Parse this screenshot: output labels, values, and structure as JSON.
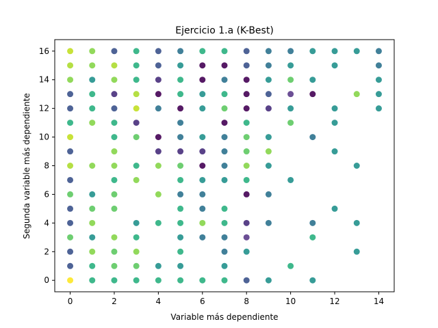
{
  "chart_data": {
    "type": "scatter",
    "title": "Ejercicio 1.a (K-Best)",
    "xlabel": "Variable más dependiente",
    "ylabel": "Segunda variable más dependiente",
    "xlim": [
      -0.7,
      14.7
    ],
    "ylim": [
      -0.8,
      16.8
    ],
    "xticks": [
      0,
      2,
      4,
      6,
      8,
      10,
      12,
      14
    ],
    "yticks": [
      0,
      2,
      4,
      6,
      8,
      10,
      12,
      14,
      16
    ],
    "grid": false,
    "colormap": [
      "#440154",
      "#3b528b",
      "#21918c",
      "#5ec962",
      "#fde725"
    ],
    "points": [
      {
        "x": 0,
        "y": 16,
        "c": "#c2df23"
      },
      {
        "x": 1,
        "y": 16,
        "c": "#86d549"
      },
      {
        "x": 2,
        "y": 16,
        "c": "#3b528b"
      },
      {
        "x": 3,
        "y": 16,
        "c": "#2ab07f"
      },
      {
        "x": 4,
        "y": 16,
        "c": "#3b528b"
      },
      {
        "x": 5,
        "y": 16,
        "c": "#2c728e"
      },
      {
        "x": 6,
        "y": 16,
        "c": "#2ab07f"
      },
      {
        "x": 7,
        "y": 16,
        "c": "#2ab07f"
      },
      {
        "x": 8,
        "y": 16,
        "c": "#3b528b"
      },
      {
        "x": 9,
        "y": 16,
        "c": "#2c728e"
      },
      {
        "x": 10,
        "y": 16,
        "c": "#2c728e"
      },
      {
        "x": 11,
        "y": 16,
        "c": "#21918c"
      },
      {
        "x": 12,
        "y": 16,
        "c": "#21918c"
      },
      {
        "x": 13,
        "y": 16,
        "c": "#21918c"
      },
      {
        "x": 14,
        "y": 16,
        "c": "#2c728e"
      },
      {
        "x": 0,
        "y": 15,
        "c": "#addc30"
      },
      {
        "x": 1,
        "y": 15,
        "c": "#86d549"
      },
      {
        "x": 2,
        "y": 15,
        "c": "#addc30"
      },
      {
        "x": 3,
        "y": 15,
        "c": "#2ab07f"
      },
      {
        "x": 4,
        "y": 15,
        "c": "#3b528b"
      },
      {
        "x": 5,
        "y": 15,
        "c": "#21918c"
      },
      {
        "x": 6,
        "y": 15,
        "c": "#440154"
      },
      {
        "x": 7,
        "y": 15,
        "c": "#440154"
      },
      {
        "x": 8,
        "y": 15,
        "c": "#3b528b"
      },
      {
        "x": 9,
        "y": 15,
        "c": "#2c728e"
      },
      {
        "x": 10,
        "y": 15,
        "c": "#21918c"
      },
      {
        "x": 12,
        "y": 15,
        "c": "#21918c"
      },
      {
        "x": 14,
        "y": 15,
        "c": "#2c728e"
      },
      {
        "x": 0,
        "y": 14,
        "c": "#86d549"
      },
      {
        "x": 1,
        "y": 14,
        "c": "#21918c"
      },
      {
        "x": 2,
        "y": 14,
        "c": "#86d549"
      },
      {
        "x": 3,
        "y": 14,
        "c": "#2ab07f"
      },
      {
        "x": 4,
        "y": 14,
        "c": "#472d7b"
      },
      {
        "x": 5,
        "y": 14,
        "c": "#2ab07f"
      },
      {
        "x": 6,
        "y": 14,
        "c": "#440154"
      },
      {
        "x": 7,
        "y": 14,
        "c": "#2c728e"
      },
      {
        "x": 8,
        "y": 14,
        "c": "#440154"
      },
      {
        "x": 9,
        "y": 14,
        "c": "#21918c"
      },
      {
        "x": 10,
        "y": 14,
        "c": "#5ec962"
      },
      {
        "x": 11,
        "y": 14,
        "c": "#21918c"
      },
      {
        "x": 14,
        "y": 14,
        "c": "#21918c"
      },
      {
        "x": 0,
        "y": 13,
        "c": "#3b528b"
      },
      {
        "x": 1,
        "y": 13,
        "c": "#2ab07f"
      },
      {
        "x": 2,
        "y": 13,
        "c": "#472d7b"
      },
      {
        "x": 3,
        "y": 13,
        "c": "#addc30"
      },
      {
        "x": 4,
        "y": 13,
        "c": "#440154"
      },
      {
        "x": 5,
        "y": 13,
        "c": "#2ab07f"
      },
      {
        "x": 6,
        "y": 13,
        "c": "#21918c"
      },
      {
        "x": 7,
        "y": 13,
        "c": "#2ab07f"
      },
      {
        "x": 8,
        "y": 13,
        "c": "#440154"
      },
      {
        "x": 9,
        "y": 13,
        "c": "#3b528b"
      },
      {
        "x": 10,
        "y": 13,
        "c": "#5c3c8a"
      },
      {
        "x": 11,
        "y": 13,
        "c": "#440154"
      },
      {
        "x": 13,
        "y": 13,
        "c": "#86d549"
      },
      {
        "x": 14,
        "y": 13,
        "c": "#21918c"
      },
      {
        "x": 0,
        "y": 12,
        "c": "#3b528b"
      },
      {
        "x": 1,
        "y": 12,
        "c": "#2ab07f"
      },
      {
        "x": 2,
        "y": 12,
        "c": "#3b528b"
      },
      {
        "x": 3,
        "y": 12,
        "c": "#c2df23"
      },
      {
        "x": 4,
        "y": 12,
        "c": "#2c728e"
      },
      {
        "x": 5,
        "y": 12,
        "c": "#440154"
      },
      {
        "x": 6,
        "y": 12,
        "c": "#21918c"
      },
      {
        "x": 7,
        "y": 12,
        "c": "#5ec962"
      },
      {
        "x": 8,
        "y": 12,
        "c": "#440154"
      },
      {
        "x": 9,
        "y": 12,
        "c": "#472d7b"
      },
      {
        "x": 10,
        "y": 12,
        "c": "#21918c"
      },
      {
        "x": 12,
        "y": 12,
        "c": "#21918c"
      },
      {
        "x": 14,
        "y": 12,
        "c": "#21918c"
      },
      {
        "x": 0,
        "y": 11,
        "c": "#2ab07f"
      },
      {
        "x": 1,
        "y": 11,
        "c": "#86d549"
      },
      {
        "x": 2,
        "y": 11,
        "c": "#2ab07f"
      },
      {
        "x": 3,
        "y": 11,
        "c": "#472d7b"
      },
      {
        "x": 5,
        "y": 11,
        "c": "#2c728e"
      },
      {
        "x": 7,
        "y": 11,
        "c": "#440154"
      },
      {
        "x": 8,
        "y": 11,
        "c": "#2ab07f"
      },
      {
        "x": 10,
        "y": 11,
        "c": "#5ec962"
      },
      {
        "x": 12,
        "y": 11,
        "c": "#21918c"
      },
      {
        "x": 0,
        "y": 10,
        "c": "#c2df23"
      },
      {
        "x": 2,
        "y": 10,
        "c": "#2ab07f"
      },
      {
        "x": 3,
        "y": 10,
        "c": "#5ec962"
      },
      {
        "x": 4,
        "y": 10,
        "c": "#440154"
      },
      {
        "x": 5,
        "y": 10,
        "c": "#2c728e"
      },
      {
        "x": 6,
        "y": 10,
        "c": "#21918c"
      },
      {
        "x": 7,
        "y": 10,
        "c": "#2c728e"
      },
      {
        "x": 8,
        "y": 10,
        "c": "#5ec962"
      },
      {
        "x": 9,
        "y": 10,
        "c": "#21918c"
      },
      {
        "x": 11,
        "y": 10,
        "c": "#2c728e"
      },
      {
        "x": 0,
        "y": 9,
        "c": "#3b528b"
      },
      {
        "x": 2,
        "y": 9,
        "c": "#86d549"
      },
      {
        "x": 4,
        "y": 9,
        "c": "#472d7b"
      },
      {
        "x": 5,
        "y": 9,
        "c": "#472d7b"
      },
      {
        "x": 6,
        "y": 9,
        "c": "#472d7b"
      },
      {
        "x": 7,
        "y": 9,
        "c": "#2c728e"
      },
      {
        "x": 8,
        "y": 9,
        "c": "#5ec962"
      },
      {
        "x": 9,
        "y": 9,
        "c": "#86d549"
      },
      {
        "x": 12,
        "y": 9,
        "c": "#21918c"
      },
      {
        "x": 0,
        "y": 8,
        "c": "#addc30"
      },
      {
        "x": 1,
        "y": 8,
        "c": "#86d549"
      },
      {
        "x": 2,
        "y": 8,
        "c": "#86d549"
      },
      {
        "x": 3,
        "y": 8,
        "c": "#2ab07f"
      },
      {
        "x": 4,
        "y": 8,
        "c": "#86d549"
      },
      {
        "x": 5,
        "y": 8,
        "c": "#5ec962"
      },
      {
        "x": 6,
        "y": 8,
        "c": "#440154"
      },
      {
        "x": 7,
        "y": 8,
        "c": "#2c728e"
      },
      {
        "x": 8,
        "y": 8,
        "c": "#86d549"
      },
      {
        "x": 9,
        "y": 8,
        "c": "#21918c"
      },
      {
        "x": 13,
        "y": 8,
        "c": "#21918c"
      },
      {
        "x": 0,
        "y": 7,
        "c": "#3b528b"
      },
      {
        "x": 2,
        "y": 7,
        "c": "#2ab07f"
      },
      {
        "x": 3,
        "y": 7,
        "c": "#86d549"
      },
      {
        "x": 5,
        "y": 7,
        "c": "#2ab07f"
      },
      {
        "x": 6,
        "y": 7,
        "c": "#21918c"
      },
      {
        "x": 7,
        "y": 7,
        "c": "#21918c"
      },
      {
        "x": 8,
        "y": 7,
        "c": "#2ab07f"
      },
      {
        "x": 10,
        "y": 7,
        "c": "#21918c"
      },
      {
        "x": 0,
        "y": 6,
        "c": "#5ec962"
      },
      {
        "x": 1,
        "y": 6,
        "c": "#21918c"
      },
      {
        "x": 2,
        "y": 6,
        "c": "#5ec962"
      },
      {
        "x": 4,
        "y": 6,
        "c": "#86d549"
      },
      {
        "x": 5,
        "y": 6,
        "c": "#2c728e"
      },
      {
        "x": 6,
        "y": 6,
        "c": "#2c728e"
      },
      {
        "x": 8,
        "y": 6,
        "c": "#440154"
      },
      {
        "x": 9,
        "y": 6,
        "c": "#2c728e"
      },
      {
        "x": 0,
        "y": 5,
        "c": "#3b528b"
      },
      {
        "x": 1,
        "y": 5,
        "c": "#5ec962"
      },
      {
        "x": 2,
        "y": 5,
        "c": "#5ec962"
      },
      {
        "x": 5,
        "y": 5,
        "c": "#2ab07f"
      },
      {
        "x": 6,
        "y": 5,
        "c": "#2c728e"
      },
      {
        "x": 7,
        "y": 5,
        "c": "#2ab07f"
      },
      {
        "x": 12,
        "y": 5,
        "c": "#21918c"
      },
      {
        "x": 0,
        "y": 4,
        "c": "#3b528b"
      },
      {
        "x": 1,
        "y": 4,
        "c": "#86d549"
      },
      {
        "x": 3,
        "y": 4,
        "c": "#21918c"
      },
      {
        "x": 4,
        "y": 4,
        "c": "#2ab07f"
      },
      {
        "x": 5,
        "y": 4,
        "c": "#2ab07f"
      },
      {
        "x": 6,
        "y": 4,
        "c": "#86d549"
      },
      {
        "x": 7,
        "y": 4,
        "c": "#2ab07f"
      },
      {
        "x": 8,
        "y": 4,
        "c": "#472d7b"
      },
      {
        "x": 9,
        "y": 4,
        "c": "#2c728e"
      },
      {
        "x": 11,
        "y": 4,
        "c": "#2c728e"
      },
      {
        "x": 13,
        "y": 4,
        "c": "#21918c"
      },
      {
        "x": 0,
        "y": 3,
        "c": "#5ec962"
      },
      {
        "x": 1,
        "y": 3,
        "c": "#21918c"
      },
      {
        "x": 2,
        "y": 3,
        "c": "#86d549"
      },
      {
        "x": 3,
        "y": 3,
        "c": "#2ab07f"
      },
      {
        "x": 5,
        "y": 3,
        "c": "#21918c"
      },
      {
        "x": 6,
        "y": 3,
        "c": "#2c728e"
      },
      {
        "x": 7,
        "y": 3,
        "c": "#2c728e"
      },
      {
        "x": 8,
        "y": 3,
        "c": "#5c3c8a"
      },
      {
        "x": 11,
        "y": 3,
        "c": "#2ab07f"
      },
      {
        "x": 0,
        "y": 2,
        "c": "#3b528b"
      },
      {
        "x": 1,
        "y": 2,
        "c": "#86d549"
      },
      {
        "x": 2,
        "y": 2,
        "c": "#5ec962"
      },
      {
        "x": 3,
        "y": 2,
        "c": "#86d549"
      },
      {
        "x": 5,
        "y": 2,
        "c": "#2ab07f"
      },
      {
        "x": 7,
        "y": 2,
        "c": "#2c728e"
      },
      {
        "x": 8,
        "y": 2,
        "c": "#21918c"
      },
      {
        "x": 13,
        "y": 2,
        "c": "#21918c"
      },
      {
        "x": 0,
        "y": 1,
        "c": "#3b528b"
      },
      {
        "x": 1,
        "y": 1,
        "c": "#2ab07f"
      },
      {
        "x": 2,
        "y": 1,
        "c": "#5ec962"
      },
      {
        "x": 3,
        "y": 1,
        "c": "#5ec962"
      },
      {
        "x": 4,
        "y": 1,
        "c": "#21918c"
      },
      {
        "x": 5,
        "y": 1,
        "c": "#21918c"
      },
      {
        "x": 7,
        "y": 1,
        "c": "#21918c"
      },
      {
        "x": 10,
        "y": 1,
        "c": "#2ab07f"
      },
      {
        "x": 0,
        "y": 0,
        "c": "#fde725"
      },
      {
        "x": 1,
        "y": 0,
        "c": "#2ab07f"
      },
      {
        "x": 2,
        "y": 0,
        "c": "#2ab07f"
      },
      {
        "x": 3,
        "y": 0,
        "c": "#2ab07f"
      },
      {
        "x": 4,
        "y": 0,
        "c": "#2ab07f"
      },
      {
        "x": 5,
        "y": 0,
        "c": "#2ab07f"
      },
      {
        "x": 6,
        "y": 0,
        "c": "#2ab07f"
      },
      {
        "x": 7,
        "y": 0,
        "c": "#2ab07f"
      },
      {
        "x": 8,
        "y": 0,
        "c": "#3b528b"
      },
      {
        "x": 9,
        "y": 0,
        "c": "#21918c"
      },
      {
        "x": 11,
        "y": 0,
        "c": "#21918c"
      }
    ]
  }
}
